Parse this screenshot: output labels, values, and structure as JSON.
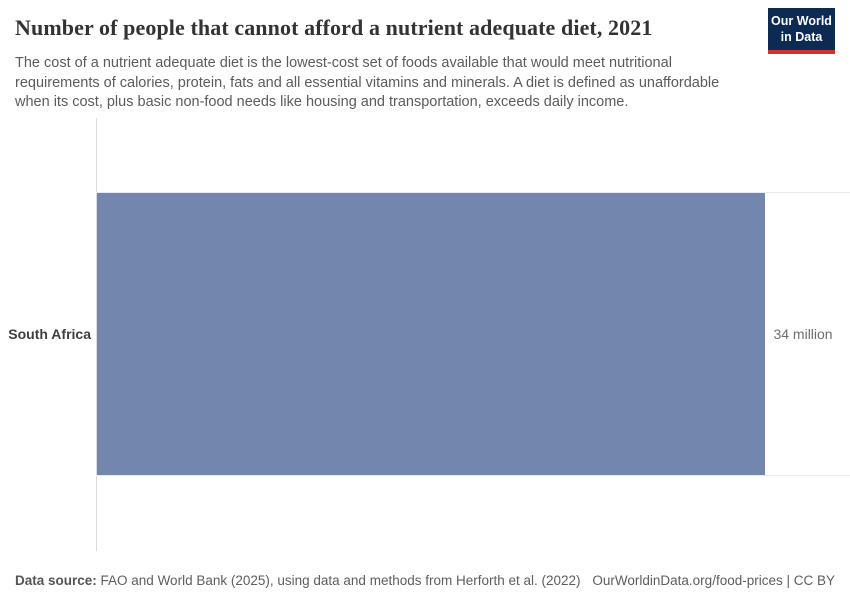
{
  "header": {
    "title": "Number of people that cannot afford a nutrient adequate diet, 2021",
    "subtitle_lines": [
      "The cost of a nutrient adequate diet is the lowest-cost set of foods available that would meet nutritional",
      "requirements of calories, protein, fats and all essential vitamins and minerals. A diet is defined as unaffordable",
      "when its cost, plus basic non-food needs like housing and transportation, exceeds daily income."
    ],
    "logo": {
      "line1": "Our World",
      "line2": "in Data"
    }
  },
  "chart_data": {
    "type": "bar",
    "orientation": "horizontal",
    "title": "Number of people that cannot afford a nutrient adequate diet, 2021",
    "categories": [
      "South Africa"
    ],
    "values": [
      34
    ],
    "value_labels": [
      "34 million"
    ],
    "xlabel": "",
    "ylabel": "",
    "xlim": [
      0,
      38.3
    ],
    "grid": false,
    "legend": false
  },
  "footer": {
    "source_label": "Data source:",
    "source_text": " FAO and World Bank (2025), using data and methods from Herforth et al. (2022)",
    "link_text": "OurWorldinData.org/food-prices | CC BY"
  },
  "colors": {
    "bar": "#7287ab",
    "logo_bg": "#0d2b52",
    "logo_red": "#d1342b"
  }
}
